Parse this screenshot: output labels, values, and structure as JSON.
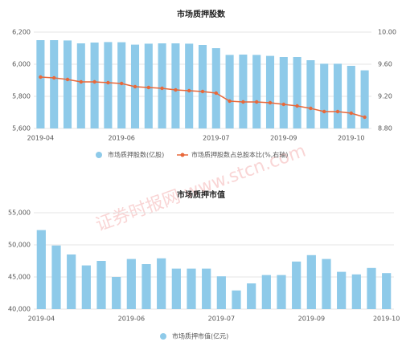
{
  "watermark": "证券时报网 www.stcn.com",
  "chart_data": [
    {
      "type": "bar",
      "title": "市场质押股数",
      "categories": [
        "2019-04",
        null,
        null,
        null,
        null,
        null,
        "2019-06",
        null,
        null,
        null,
        null,
        null,
        null,
        "2019-07",
        null,
        null,
        null,
        null,
        "2019-09",
        null,
        null,
        null,
        null,
        "2019-10",
        null
      ],
      "series": [
        {
          "name": "市场质押股数(亿股)",
          "color": "#8ecae9",
          "values": [
            6150,
            6150,
            6148,
            6130,
            6135,
            6138,
            6137,
            6122,
            6128,
            6130,
            6130,
            6128,
            6120,
            6100,
            6058,
            6060,
            6058,
            6052,
            6045,
            6045,
            6025,
            6003,
            6003,
            5990,
            5962
          ]
        },
        {
          "name": "市场质押股数占总股本比(%,右轴)",
          "color": "#e8683a",
          "axis": "y2",
          "values": [
            9.44,
            9.43,
            9.41,
            9.38,
            9.38,
            9.37,
            9.36,
            9.32,
            9.31,
            9.3,
            9.28,
            9.27,
            9.26,
            9.24,
            9.14,
            9.13,
            9.13,
            9.12,
            9.1,
            9.08,
            9.05,
            9.01,
            9.01,
            8.99,
            8.94
          ]
        }
      ],
      "ylim": [
        5600,
        6200
      ],
      "yticks": [
        {
          "value": 5600,
          "label": "5,600"
        },
        {
          "value": 5800,
          "label": "5,800"
        },
        {
          "value": 6000,
          "label": "6,000"
        },
        {
          "value": 6200,
          "label": "6,200"
        }
      ],
      "y2lim": [
        8.8,
        10
      ],
      "y2ticks": [
        {
          "value": 8.8,
          "label": "8.80"
        },
        {
          "value": 9.2,
          "label": "9.20"
        },
        {
          "value": 9.6,
          "label": "9.60"
        },
        {
          "value": 10,
          "label": "10.00"
        }
      ],
      "grid": true
    },
    {
      "type": "bar",
      "title": "市场质押市值",
      "categories": [
        "2019-04",
        null,
        null,
        null,
        null,
        null,
        "2019-06",
        null,
        null,
        null,
        null,
        null,
        "2019-07",
        null,
        null,
        null,
        null,
        null,
        "2019-09",
        null,
        null,
        null,
        null,
        "2019-10"
      ],
      "series": [
        {
          "name": "市场质押市值(亿元)",
          "color": "#8ecae9",
          "values": [
            52300,
            49900,
            48500,
            46800,
            47500,
            45000,
            47800,
            47000,
            47900,
            46300,
            46300,
            46300,
            45100,
            42900,
            44000,
            45300,
            45300,
            47400,
            48400,
            47800,
            45800,
            45400,
            46400,
            45600
          ]
        }
      ],
      "ylim": [
        40000,
        55000
      ],
      "yticks": [
        {
          "value": 40000,
          "label": "40,000"
        },
        {
          "value": 45000,
          "label": "45,000"
        },
        {
          "value": 50000,
          "label": "50,000"
        },
        {
          "value": 55000,
          "label": "55,000"
        }
      ],
      "grid": true
    }
  ]
}
